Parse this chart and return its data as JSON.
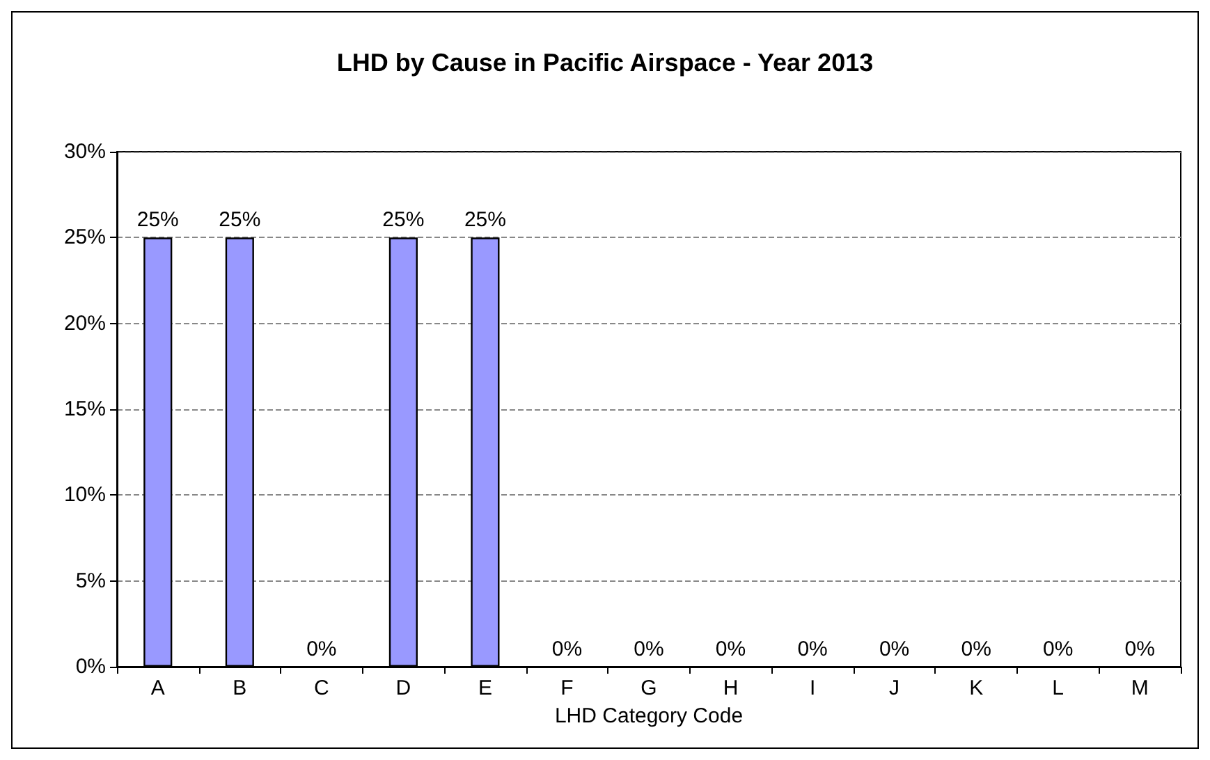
{
  "chart_data": {
    "type": "bar",
    "title": "LHD by Cause in Pacific Airspace - Year 2013",
    "xlabel": "LHD Category Code",
    "categories": [
      "A",
      "B",
      "C",
      "D",
      "E",
      "F",
      "G",
      "H",
      "I",
      "J",
      "K",
      "L",
      "M"
    ],
    "values": [
      25,
      25,
      0,
      25,
      25,
      0,
      0,
      0,
      0,
      0,
      0,
      0,
      0
    ],
    "value_labels": [
      "25%",
      "25%",
      "0%",
      "25%",
      "25%",
      "0%",
      "0%",
      "0%",
      "0%",
      "0%",
      "0%",
      "0%",
      "0%"
    ],
    "color": "#9999ff",
    "ylim": [
      0,
      30
    ],
    "yticks": [
      {
        "value": 0,
        "label": "0%"
      },
      {
        "value": 5,
        "label": "5%"
      },
      {
        "value": 10,
        "label": "10%"
      },
      {
        "value": 15,
        "label": "15%"
      },
      {
        "value": 20,
        "label": "20%"
      },
      {
        "value": 25,
        "label": "25%"
      },
      {
        "value": 30,
        "label": "30%"
      }
    ],
    "grid": "y"
  }
}
